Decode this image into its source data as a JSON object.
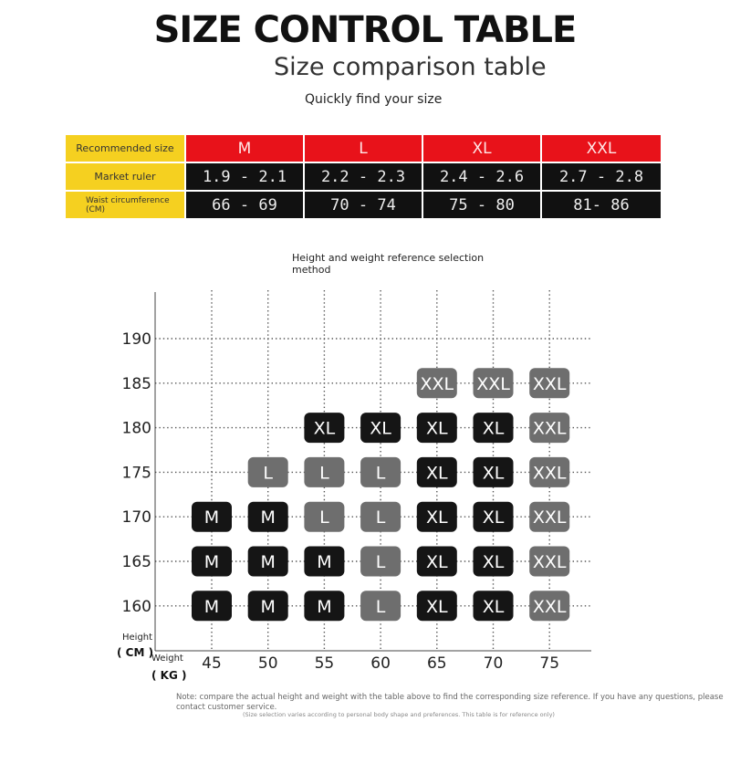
{
  "header": {
    "title": "SIZE CONTROL TABLE",
    "subtitle": "Size comparison table",
    "tagline": "Quickly find your size"
  },
  "size_table": {
    "row_labels": [
      "Recommended size",
      "Market ruler",
      "Waist circumference (CM)"
    ],
    "sizes": [
      "M",
      "L",
      "XL",
      "XXL"
    ],
    "market_ruler": [
      "1.9 - 2.1",
      "2.2 - 2.3",
      "2.4 - 2.6",
      "2.7 - 2.8"
    ],
    "waist_cm": [
      "66 - 69",
      "70 - 74",
      "75 - 80",
      "81- 86"
    ],
    "colors": {
      "label_bg": "#f5d020",
      "size_bg": "#e8121a",
      "data_bg": "#111111"
    }
  },
  "chart_data": {
    "type": "heatmap",
    "title": "Height and weight reference selection method",
    "xlabel": "Weight",
    "xunit": "( KG )",
    "ylabel": "Height",
    "yunit": "( CM )",
    "x": [
      45,
      50,
      55,
      60,
      65,
      70,
      75
    ],
    "y": [
      190,
      185,
      180,
      175,
      170,
      165,
      160
    ],
    "grid": true,
    "cells": [
      {
        "x": 65,
        "y": 185,
        "size": "XXL"
      },
      {
        "x": 70,
        "y": 185,
        "size": "XXL"
      },
      {
        "x": 75,
        "y": 185,
        "size": "XXL"
      },
      {
        "x": 55,
        "y": 180,
        "size": "XL"
      },
      {
        "x": 60,
        "y": 180,
        "size": "XL"
      },
      {
        "x": 65,
        "y": 180,
        "size": "XL"
      },
      {
        "x": 70,
        "y": 180,
        "size": "XL"
      },
      {
        "x": 75,
        "y": 180,
        "size": "XXL"
      },
      {
        "x": 50,
        "y": 175,
        "size": "L"
      },
      {
        "x": 55,
        "y": 175,
        "size": "L"
      },
      {
        "x": 60,
        "y": 175,
        "size": "L"
      },
      {
        "x": 65,
        "y": 175,
        "size": "XL"
      },
      {
        "x": 70,
        "y": 175,
        "size": "XL"
      },
      {
        "x": 75,
        "y": 175,
        "size": "XXL"
      },
      {
        "x": 45,
        "y": 170,
        "size": "M"
      },
      {
        "x": 50,
        "y": 170,
        "size": "M"
      },
      {
        "x": 55,
        "y": 170,
        "size": "L"
      },
      {
        "x": 60,
        "y": 170,
        "size": "L"
      },
      {
        "x": 65,
        "y": 170,
        "size": "XL"
      },
      {
        "x": 70,
        "y": 170,
        "size": "XL"
      },
      {
        "x": 75,
        "y": 170,
        "size": "XXL"
      },
      {
        "x": 45,
        "y": 165,
        "size": "M"
      },
      {
        "x": 50,
        "y": 165,
        "size": "M"
      },
      {
        "x": 55,
        "y": 165,
        "size": "M"
      },
      {
        "x": 60,
        "y": 165,
        "size": "L"
      },
      {
        "x": 65,
        "y": 165,
        "size": "XL"
      },
      {
        "x": 70,
        "y": 165,
        "size": "XL"
      },
      {
        "x": 75,
        "y": 165,
        "size": "XXL"
      },
      {
        "x": 45,
        "y": 160,
        "size": "M"
      },
      {
        "x": 50,
        "y": 160,
        "size": "M"
      },
      {
        "x": 55,
        "y": 160,
        "size": "M"
      },
      {
        "x": 60,
        "y": 160,
        "size": "L"
      },
      {
        "x": 65,
        "y": 160,
        "size": "XL"
      },
      {
        "x": 70,
        "y": 160,
        "size": "XL"
      },
      {
        "x": 75,
        "y": 160,
        "size": "XXL"
      }
    ],
    "cell_colors": [
      {
        "x": 65,
        "y": 185,
        "color": "#6e6e6e"
      },
      {
        "x": 70,
        "y": 185,
        "color": "#6e6e6e"
      },
      {
        "x": 75,
        "y": 185,
        "color": "#6e6e6e"
      },
      {
        "x": 75,
        "y": 180,
        "color": "#6e6e6e"
      },
      {
        "x": 75,
        "y": 175,
        "color": "#6e6e6e"
      },
      {
        "x": 75,
        "y": 170,
        "color": "#6e6e6e"
      },
      {
        "x": 75,
        "y": 165,
        "color": "#6e6e6e"
      },
      {
        "x": 75,
        "y": 160,
        "color": "#6e6e6e"
      },
      {
        "x": 50,
        "y": 175,
        "color": "#6e6e6e"
      },
      {
        "x": 55,
        "y": 175,
        "color": "#6e6e6e"
      },
      {
        "x": 60,
        "y": 175,
        "color": "#6e6e6e"
      },
      {
        "x": 55,
        "y": 170,
        "color": "#6e6e6e"
      },
      {
        "x": 60,
        "y": 170,
        "color": "#6e6e6e"
      },
      {
        "x": 60,
        "y": 165,
        "color": "#6e6e6e"
      },
      {
        "x": 60,
        "y": 160,
        "color": "#6e6e6e"
      }
    ],
    "default_cell_color": "#151515"
  },
  "notes": {
    "main": "Note: compare the actual height and weight with the table above to find the corresponding size reference. If you have any questions, please contact customer service.",
    "sub": "(Size selection varies according to personal body shape and preferences. This table is for reference only)"
  }
}
